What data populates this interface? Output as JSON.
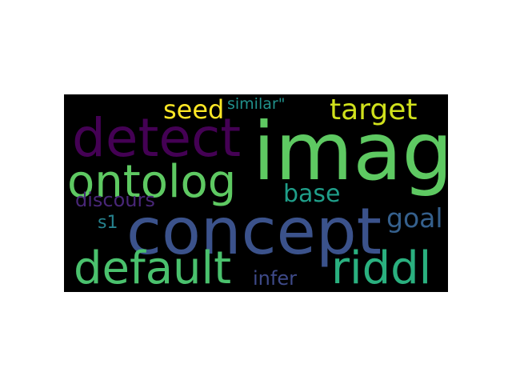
{
  "chart_data": {
    "type": "wordcloud",
    "background": "#000000",
    "words": [
      {
        "text": "imag",
        "weight": 100,
        "color": "#5ec962"
      },
      {
        "text": "concept",
        "weight": 80,
        "color": "#3b528b"
      },
      {
        "text": "detect",
        "weight": 66,
        "color": "#440154"
      },
      {
        "text": "ontolog",
        "weight": 56,
        "color": "#5ec962"
      },
      {
        "text": "default",
        "weight": 56,
        "color": "#4ac16d"
      },
      {
        "text": "riddl",
        "weight": 56,
        "color": "#2ab07f"
      },
      {
        "text": "target",
        "weight": 36,
        "color": "#d0e11c"
      },
      {
        "text": "seed",
        "weight": 32,
        "color": "#fde725"
      },
      {
        "text": "goal",
        "weight": 33,
        "color": "#35608d"
      },
      {
        "text": "base",
        "weight": 30,
        "color": "#1f9e89"
      },
      {
        "text": "discours",
        "weight": 24,
        "color": "#482677"
      },
      {
        "text": "infer",
        "weight": 24,
        "color": "#3e4a89"
      },
      {
        "text": "s1",
        "weight": 22,
        "color": "#26828e"
      },
      {
        "text": "similar\"",
        "weight": 19,
        "color": "#21918c"
      }
    ]
  }
}
